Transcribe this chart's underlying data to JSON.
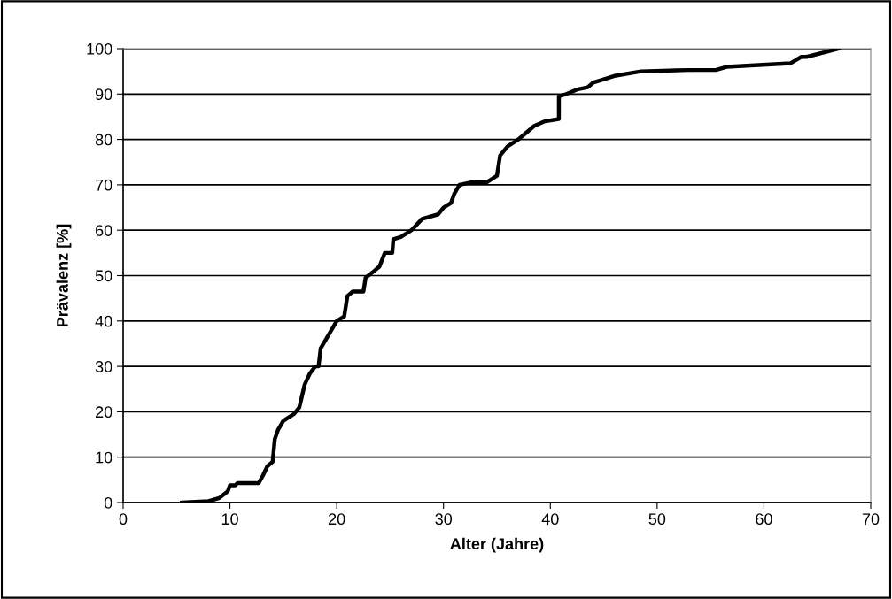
{
  "chart_data": {
    "type": "line",
    "xlabel": "Alter (Jahre)",
    "ylabel": "Prävalenz [%]",
    "x": [
      5.5,
      8,
      9,
      9.8,
      10,
      10.5,
      10.7,
      12.7,
      13.1,
      13.5,
      14,
      14.2,
      14.5,
      15,
      16,
      16.5,
      17,
      17.5,
      18,
      18.3,
      18.5,
      19,
      19.5,
      20,
      20.7,
      21,
      21.5,
      22.5,
      22.7,
      23.5,
      24,
      24.5,
      25.2,
      25.3,
      26,
      27,
      28,
      29.5,
      30,
      30.7,
      31,
      31.5,
      32.5,
      34,
      35,
      35.3,
      36,
      37,
      37.5,
      38.5,
      39.5,
      40.8,
      40.8,
      41.5,
      42.5,
      43.5,
      44,
      46,
      48.5,
      53,
      55.5,
      56.5,
      62.5,
      63,
      63.5,
      64,
      67
    ],
    "series": [
      {
        "color": "#000000",
        "values": [
          0,
          0.3,
          1,
          2.5,
          3.8,
          3.8,
          4.3,
          4.3,
          6,
          8,
          9,
          14,
          16,
          18,
          19.5,
          21,
          26,
          28.5,
          30,
          30,
          34,
          36,
          38,
          40,
          41,
          45.5,
          46.5,
          46.5,
          49.5,
          51,
          52,
          55,
          55,
          58,
          58.5,
          60,
          62.5,
          63.5,
          65,
          66,
          68,
          70,
          70.5,
          70.5,
          72,
          76.5,
          78.5,
          80,
          81,
          83,
          84,
          84.5,
          89.5,
          90,
          91,
          91.5,
          92.5,
          94,
          95,
          95.3,
          95.3,
          96,
          96.8,
          97.5,
          98.2,
          98.2,
          100
        ]
      }
    ],
    "xlim": [
      0,
      70
    ],
    "ylim": [
      0,
      100
    ],
    "xticks": [
      0,
      10,
      20,
      30,
      40,
      50,
      60,
      70
    ],
    "yticks": [
      0,
      10,
      20,
      30,
      40,
      50,
      60,
      70,
      80,
      90,
      100
    ],
    "grid": "y",
    "legend": false,
    "marker": "none",
    "line_style": "solid"
  }
}
